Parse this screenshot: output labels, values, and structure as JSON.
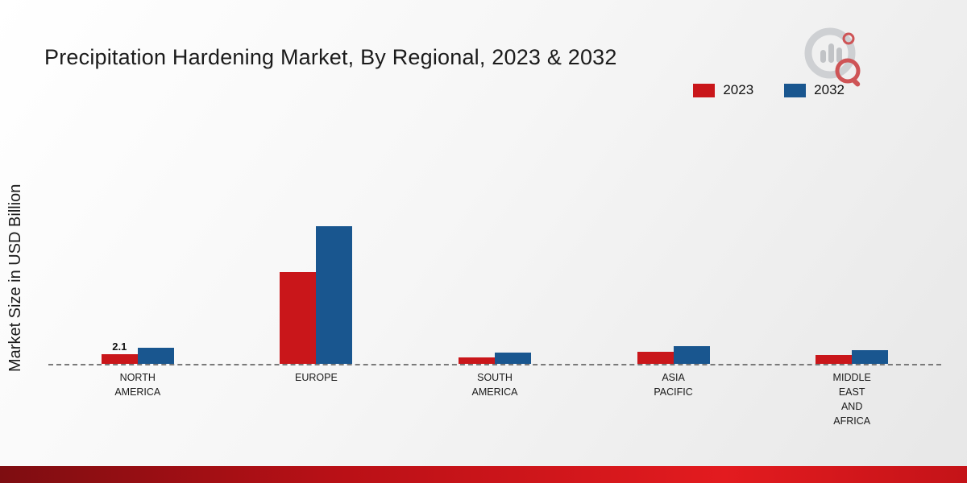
{
  "header": {
    "title": "Precipitation Hardening Market, By Regional, 2023 & 2032"
  },
  "axes": {
    "ylabel": "Market Size in USD Billion"
  },
  "legend": {
    "items": [
      {
        "label": "2023",
        "color": "#c9161a"
      },
      {
        "label": "2032",
        "color": "#19568f"
      }
    ]
  },
  "chart_data": {
    "type": "bar",
    "title": "Precipitation Hardening Market, By Regional, 2023 & 2032",
    "xlabel": "",
    "ylabel": "Market Size in USD Billion",
    "categories": [
      "NORTH\nAMERICA",
      "EUROPE",
      "SOUTH\nAMERICA",
      "ASIA\nPACIFIC",
      "MIDDLE\nEAST\nAND\nAFRICA"
    ],
    "series": [
      {
        "name": "2023",
        "color": "#c9161a",
        "values": [
          2.1,
          20.0,
          1.4,
          2.6,
          2.0
        ]
      },
      {
        "name": "2032",
        "color": "#19568f",
        "values": [
          3.5,
          30.0,
          2.4,
          3.9,
          2.9
        ]
      }
    ],
    "ylim": [
      0,
      35
    ],
    "grid": false,
    "baseline_style": "dashed",
    "legend_position": "top-right",
    "bar_labels": [
      {
        "series": 0,
        "category": 0,
        "text": "2.1"
      }
    ]
  }
}
